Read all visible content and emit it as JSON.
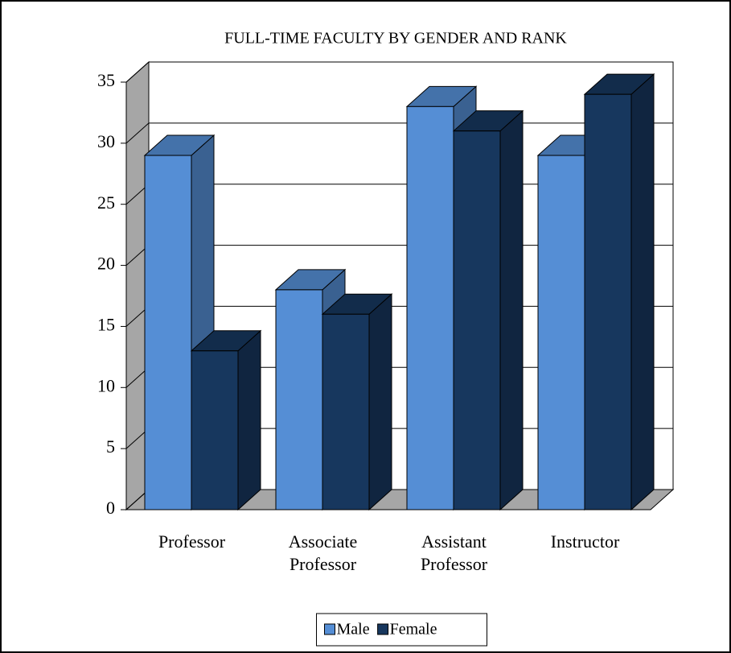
{
  "chart_data": {
    "type": "bar3d",
    "title": "FULL-TIME FACULTY BY GENDER AND RANK",
    "categories": [
      "Professor",
      "Associate Professor",
      "Assistant Professor",
      "Instructor"
    ],
    "series": [
      {
        "name": "Male",
        "color": "#558ed5",
        "values": [
          29,
          18,
          33,
          29
        ]
      },
      {
        "name": "Female",
        "color": "#17375e",
        "values": [
          13,
          16,
          31,
          34
        ]
      }
    ],
    "ylim": [
      0,
      35
    ],
    "yticks": [
      0,
      5,
      10,
      15,
      20,
      25,
      30,
      35
    ],
    "grid": true,
    "legend": "bottom"
  }
}
